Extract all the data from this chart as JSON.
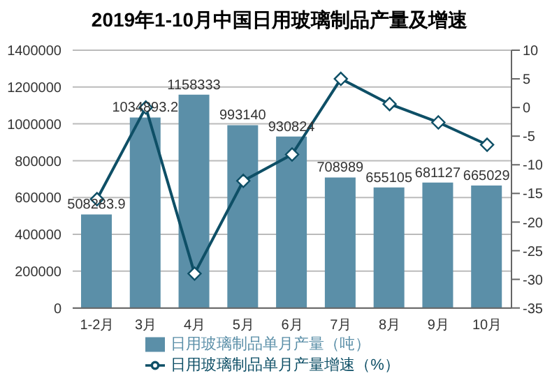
{
  "chart_data": {
    "type": "bar",
    "title": "2019年1-10月中国日用玻璃制品产量及增速",
    "categories": [
      "1-2月",
      "3月",
      "4月",
      "5月",
      "6月",
      "7月",
      "8月",
      "9月",
      "10月"
    ],
    "series": [
      {
        "name": "日用玻璃制品单月产量（吨）",
        "color": "#5b8fa8",
        "values": [
          508283.9,
          1034893.2,
          1158333,
          993140,
          930824,
          708989,
          655105,
          681127,
          665029
        ],
        "value_labels": [
          "508283.9",
          "1034893.2",
          "1158333",
          "993140",
          "930824",
          "708989",
          "655105",
          "681127",
          "665029"
        ]
      },
      {
        "name": "日用玻璃制品单月产量增速（%）",
        "type": "line",
        "axis": "y2",
        "color": "#0e4f66",
        "marker": "diamond",
        "values": [
          -16,
          0,
          -29,
          -12.8,
          -8.2,
          5,
          0.6,
          -2.6,
          -6.5
        ]
      }
    ],
    "ylim": [
      0,
      1400000
    ],
    "yticks": [
      0,
      200000,
      400000,
      600000,
      800000,
      1000000,
      1200000,
      1400000
    ],
    "y2lim": [
      -35,
      10
    ],
    "y2ticks": [
      -35,
      -30,
      -25,
      -20,
      -15,
      -10,
      -5,
      0,
      5,
      10
    ],
    "grid": "y",
    "legend": "bottom"
  }
}
